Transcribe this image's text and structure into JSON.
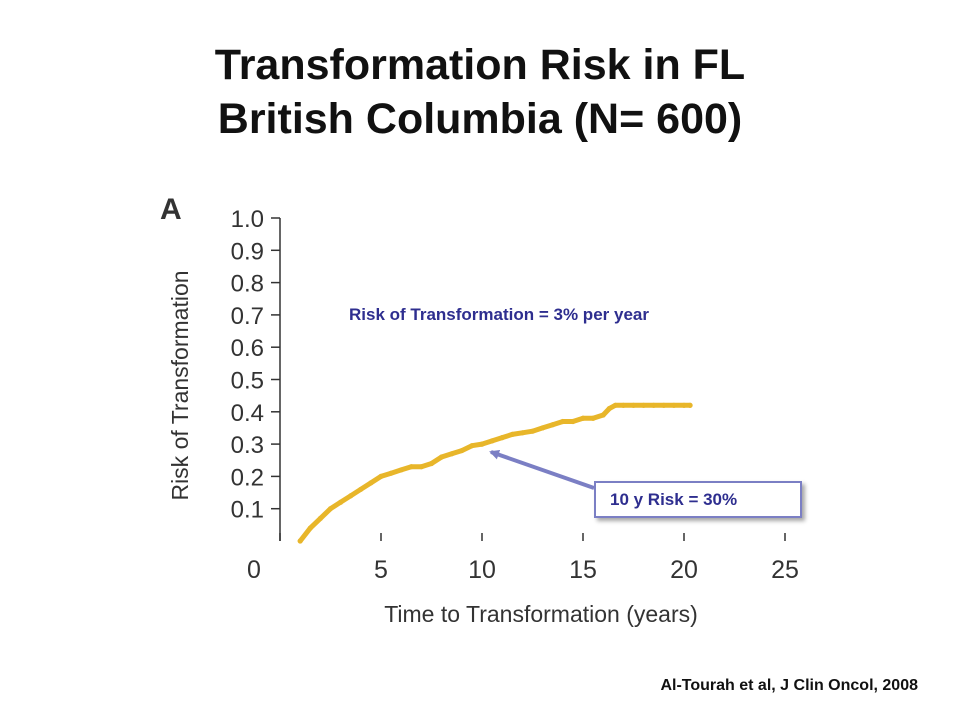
{
  "slide": {
    "title_line1": "Transformation Risk in FL",
    "title_line2": "British Columbia (N= 600)",
    "rate_note": "Risk of Transformation = 3% per year",
    "callout": "10 y Risk = 30%",
    "citation": "Al-Tourah et al,  J Clin Oncol, 2008"
  },
  "colors": {
    "curve": "#e8b62a",
    "curve_edge": "#2f7fa0",
    "axis": "#333333",
    "annotation": "#2e2e8f",
    "arrow": "#7b7fc4"
  },
  "chart_data": {
    "type": "line",
    "panel_label": "A",
    "xlabel": "Time to Transformation (years)",
    "ylabel": "Risk of Transformation",
    "xlim": [
      0,
      25
    ],
    "ylim": [
      0,
      1.0
    ],
    "x_ticks": [
      "0",
      "5",
      "10",
      "15",
      "20",
      "25"
    ],
    "y_ticks": [
      "0.1",
      "0.2",
      "0.3",
      "0.4",
      "0.5",
      "0.6",
      "0.7",
      "0.8",
      "0.9",
      "1.0"
    ],
    "grid": false,
    "series": [
      {
        "x": [
          1.0,
          1.5,
          2.0,
          2.5,
          3.0,
          3.5,
          4.0,
          4.5,
          5.0,
          5.5,
          6.0,
          6.5,
          7.0,
          7.5,
          8.0,
          8.5,
          9.0,
          9.5,
          10.0,
          10.5,
          11.0,
          11.5,
          12.0,
          12.5,
          13.0,
          13.5,
          14.0,
          14.5,
          15.0,
          15.5,
          16.0,
          16.3,
          16.6,
          17.0,
          17.5,
          18.0,
          18.5,
          19.0,
          19.5,
          20.0,
          20.3
        ],
        "y": [
          0.0,
          0.04,
          0.07,
          0.1,
          0.12,
          0.14,
          0.16,
          0.18,
          0.2,
          0.21,
          0.22,
          0.23,
          0.23,
          0.24,
          0.26,
          0.27,
          0.28,
          0.295,
          0.3,
          0.31,
          0.32,
          0.33,
          0.335,
          0.34,
          0.35,
          0.36,
          0.37,
          0.37,
          0.38,
          0.38,
          0.39,
          0.41,
          0.42,
          0.42,
          0.42,
          0.42,
          0.42,
          0.42,
          0.42,
          0.42,
          0.42
        ]
      }
    ]
  }
}
